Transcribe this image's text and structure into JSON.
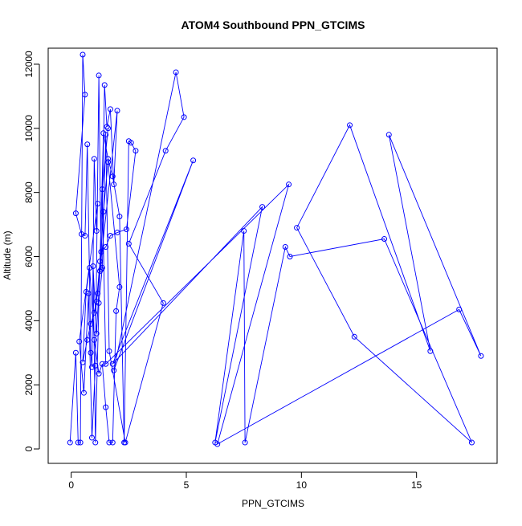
{
  "chart_data": {
    "type": "line",
    "title": "ATOM4 Southbound PPN_GTCIMS",
    "xlabel": "PPN_GTCIMS",
    "ylabel": "Altitude (m)",
    "xlim": [
      -1,
      18.5
    ],
    "ylim": [
      -450,
      12500
    ],
    "x_ticks": [
      0,
      5,
      10,
      15
    ],
    "y_ticks": [
      0,
      2000,
      4000,
      6000,
      8000,
      10000,
      12000
    ],
    "grid": false,
    "legend": "none",
    "series": [
      {
        "color": "#0000FF",
        "marker": "open-circle",
        "x": [
          -0.05,
          0.2,
          0.3,
          0.4,
          0.5,
          0.6,
          0.2,
          0.45,
          0.6,
          0.7,
          0.85,
          0.9,
          1.0,
          1.1,
          1.15,
          0.35,
          0.55,
          0.75,
          0.9,
          1.05,
          1.2,
          1.3,
          1.45,
          1.55,
          1.7,
          1.85,
          2.0,
          1.1,
          1.25,
          1.4,
          1.6,
          1.8,
          2.1,
          2.3,
          2.5,
          2.6,
          2.8,
          2.4,
          2.0,
          1.7,
          1.5,
          1.3,
          1.15,
          1.0,
          0.85,
          0.7,
          0.5,
          0.65,
          0.8,
          1.0,
          1.2,
          1.35,
          1.5,
          1.65,
          1.8,
          1.95,
          2.1,
          1.6,
          1.4,
          1.25,
          1.1,
          0.95,
          1.05,
          1.2,
          1.35,
          1.5,
          1.65,
          2.35,
          4.0,
          2.5,
          4.1,
          4.9,
          4.55,
          1.85,
          5.3,
          1.8,
          8.3,
          6.25,
          7.5,
          7.55,
          9.3,
          9.5,
          13.6,
          17.4,
          12.3,
          9.8,
          12.1,
          15.6,
          13.8,
          17.8,
          16.85,
          6.35,
          9.45,
          1.5,
          1.35,
          1.6
        ],
        "y": [
          200,
          3000,
          200,
          200,
          12300,
          11050,
          7350,
          6700,
          6650,
          9500,
          3000,
          2550,
          9050,
          6800,
          7650,
          3350,
          1750,
          4850,
          350,
          2600,
          11650,
          5600,
          11350,
          10050,
          10600,
          8250,
          10550,
          4600,
          5850,
          9850,
          9050,
          8500,
          7250,
          200,
          9600,
          9550,
          9300,
          6850,
          6750,
          6650,
          6300,
          6150,
          4850,
          4250,
          3900,
          3400,
          2700,
          4900,
          5650,
          3400,
          2350,
          2650,
          1300,
          200,
          200,
          4300,
          5050,
          8950,
          7400,
          5550,
          3600,
          5700,
          200,
          4550,
          5650,
          9800,
          3050,
          200,
          4550,
          6400,
          9300,
          10350,
          11750,
          2450,
          9000,
          2650,
          7550,
          200,
          6800,
          200,
          6300,
          6000,
          6550,
          200,
          3500,
          6900,
          10100,
          3050,
          9800,
          2900,
          4350,
          150,
          8250,
          2650,
          8100,
          10000
        ]
      }
    ]
  }
}
